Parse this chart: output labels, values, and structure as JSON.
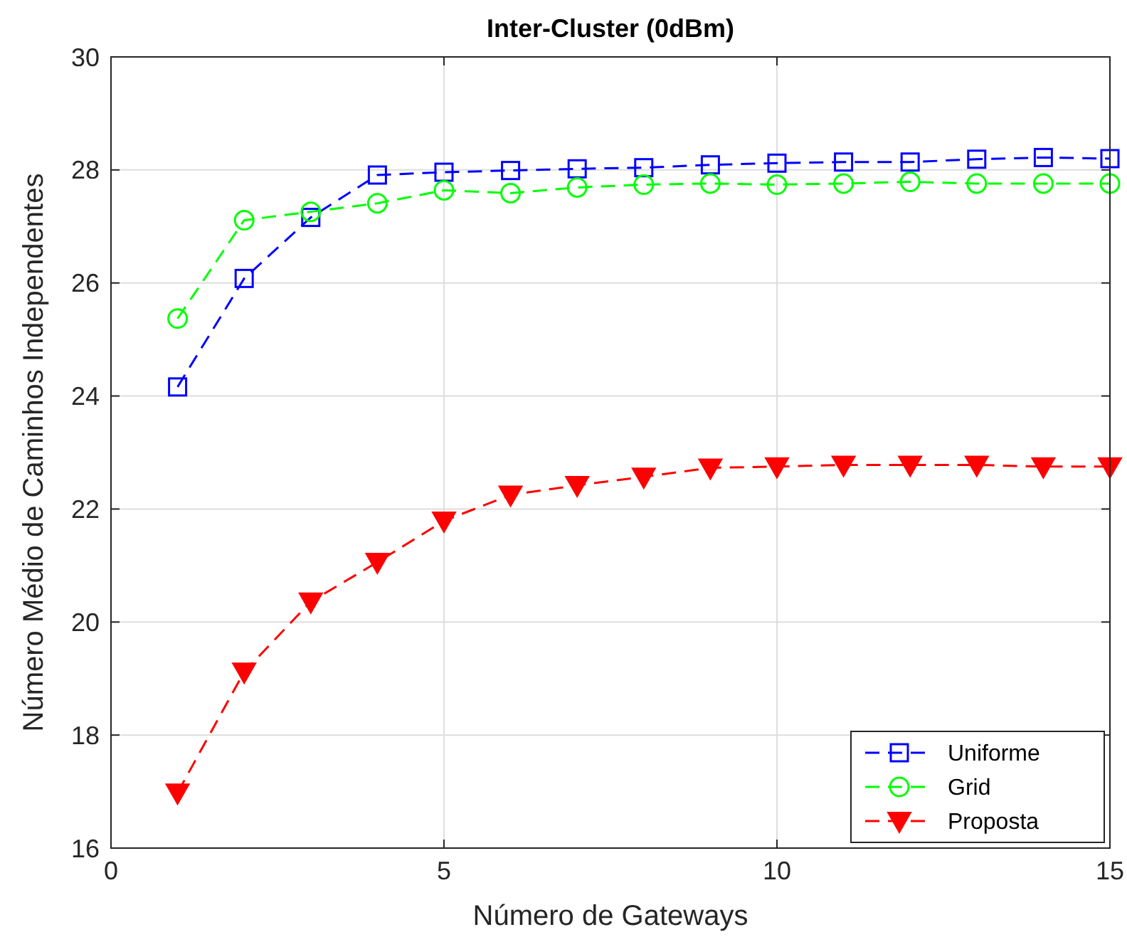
{
  "chart_data": {
    "type": "line",
    "title": "Inter-Cluster (0dBm)",
    "xlabel": "Número de Gateways",
    "ylabel": "Número Médio de Caminhos Independentes",
    "x": [
      1,
      2,
      3,
      4,
      5,
      6,
      7,
      8,
      9,
      10,
      11,
      12,
      13,
      14,
      15
    ],
    "series": [
      {
        "name": "Uniforme",
        "color": "#0000ff",
        "marker": "square",
        "values": [
          24.16,
          26.08,
          27.16,
          27.91,
          27.96,
          27.99,
          28.02,
          28.04,
          28.09,
          28.12,
          28.14,
          28.14,
          28.19,
          28.22,
          28.2
        ]
      },
      {
        "name": "Grid",
        "color": "#00ff00",
        "marker": "circle",
        "values": [
          25.37,
          27.11,
          27.26,
          27.41,
          27.64,
          27.59,
          27.69,
          27.74,
          27.76,
          27.74,
          27.76,
          27.79,
          27.76,
          27.76,
          27.76
        ]
      },
      {
        "name": "Proposta",
        "color": "#ff0000",
        "marker": "triangle",
        "values": [
          16.98,
          19.12,
          20.36,
          21.06,
          21.79,
          22.25,
          22.42,
          22.57,
          22.73,
          22.75,
          22.78,
          22.78,
          22.78,
          22.75,
          22.75
        ]
      }
    ],
    "xlim": [
      0,
      15
    ],
    "xticks": [
      0,
      5,
      10,
      15
    ],
    "ylim": [
      16,
      30
    ],
    "yticks": [
      16,
      18,
      20,
      22,
      24,
      26,
      28,
      30
    ],
    "grid": true,
    "legend": "bottom right",
    "line_style": "dashed"
  }
}
